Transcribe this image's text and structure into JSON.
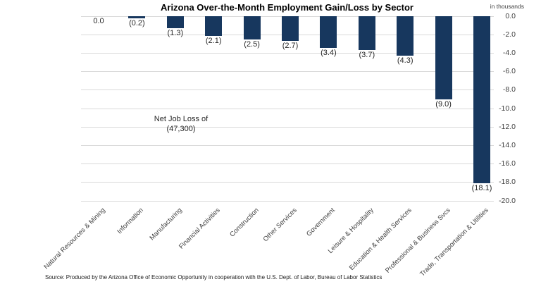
{
  "chart_data": {
    "type": "bar",
    "title": "Arizona Over-the-Month Employment Gain/Loss by Sector",
    "unit_label": "in thousands",
    "categories": [
      "Natural Resources & Mining",
      "Information",
      "Manufacturing",
      "Financial Activities",
      "Construction",
      "Other Services",
      "Government",
      "Leisure & Hospitality",
      "Education & Health Services",
      "Professional & Business Svcs",
      "Trade, Transportation & Utilities"
    ],
    "values": [
      0.0,
      -0.2,
      -1.3,
      -2.1,
      -2.5,
      -2.7,
      -3.4,
      -3.7,
      -4.3,
      -9.0,
      -18.1
    ],
    "value_labels": [
      "0.0",
      "(0.2)",
      "(1.3)",
      "(2.1)",
      "(2.5)",
      "(2.7)",
      "(3.4)",
      "(3.7)",
      "(4.3)",
      "(9.0)",
      "(18.1)"
    ],
    "y_ticks": [
      "0.0",
      "-2.0",
      "-4.0",
      "-6.0",
      "-8.0",
      "-10.0",
      "-12.0",
      "-14.0",
      "-16.0",
      "-18.0",
      "-20.0"
    ],
    "ylim": [
      -20,
      0
    ],
    "grid": true,
    "legend": "none",
    "annotation": {
      "line1": "Net Job Loss of",
      "line2": "(47,300)"
    },
    "colors": {
      "bar": "#17375e",
      "gridline": "#d9d9d9",
      "title_text": "#000000",
      "axis_text": "#404040",
      "value_text": "#262626"
    },
    "source": "Source: Produced by the Arizona Office of Economic Opportunity in cooperation with the U.S. Dept. of Labor, Bureau of Labor Statistics"
  }
}
